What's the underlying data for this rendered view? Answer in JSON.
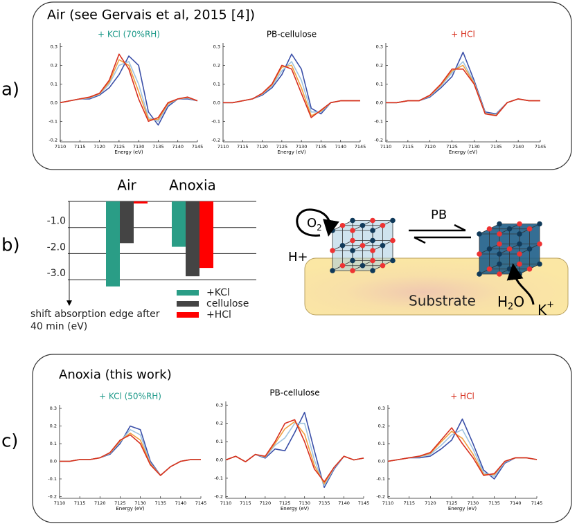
{
  "panel_labels": [
    "a)",
    "b)",
    "c)"
  ],
  "panel_titles": [
    "Air (see Gervais et al, 2015 [4])",
    "Anoxia (this work)"
  ],
  "diagram": {
    "pb": "PB",
    "o2": {
      "base": "O",
      "sub": "2"
    },
    "h_plus": "H+",
    "substrate": "Substrate",
    "h2o": {
      "base": "H",
      "sub": "2",
      "rest": "O"
    },
    "k_plus": {
      "base": "K",
      "sup": "+"
    }
  },
  "chart_data": [
    {
      "type": "line",
      "title": "+ KCl (70%RH)",
      "title_color": "#1f9a8a",
      "xlabel": "Energy (eV)",
      "x": [
        7110,
        7112.5,
        7115,
        7117.5,
        7120,
        7122.5,
        7125,
        7127.5,
        7130,
        7132.5,
        7135,
        7137.5,
        7140,
        7142.5,
        7145
      ],
      "xlim": [
        7110,
        7145
      ],
      "xticks": [
        7110,
        7115,
        7120,
        7125,
        7130,
        7135,
        7140,
        7145
      ],
      "ylim": [
        -0.21,
        0.32
      ],
      "yticks": [
        -0.2,
        -0.1,
        {
          "value": 0,
          "label": "0.0"
        },
        0.1,
        0.2,
        0.3
      ],
      "series": [
        {
          "color": "#3a4fa8",
          "values": [
            0,
            0.01,
            0.02,
            0.02,
            0.04,
            0.08,
            0.15,
            0.25,
            0.2,
            -0.05,
            -0.12,
            -0.02,
            0.02,
            0.02,
            0.01
          ]
        },
        {
          "color": "#9ec3e0",
          "values": [
            0,
            0.01,
            0.02,
            0.025,
            0.045,
            0.1,
            0.2,
            0.22,
            0.1,
            -0.08,
            -0.1,
            -0.01,
            0.02,
            0.025,
            0.01
          ]
        },
        {
          "color": "#f0a040",
          "values": [
            0,
            0.01,
            0.02,
            0.028,
            0.048,
            0.11,
            0.23,
            0.2,
            0.06,
            -0.09,
            -0.09,
            -0.005,
            0.02,
            0.028,
            0.01
          ]
        },
        {
          "color": "#d7301f",
          "values": [
            0,
            0.01,
            0.02,
            0.03,
            0.05,
            0.12,
            0.26,
            0.18,
            0.02,
            -0.1,
            -0.08,
            0,
            0.02,
            0.03,
            0.01
          ]
        }
      ]
    },
    {
      "type": "line",
      "title": "PB-cellulose",
      "title_color": "#000000",
      "xlabel": "Energy (eV)",
      "x": [
        7110,
        7112.5,
        7115,
        7117.5,
        7120,
        7122.5,
        7125,
        7127.5,
        7130,
        7132.5,
        7135,
        7137.5,
        7140,
        7142.5,
        7145
      ],
      "xlim": [
        7110,
        7145
      ],
      "xticks": [
        7110,
        7115,
        7120,
        7125,
        7130,
        7135,
        7140,
        7145
      ],
      "ylim": [
        -0.21,
        0.32
      ],
      "yticks": [
        -0.2,
        -0.1,
        {
          "value": 0,
          "label": "0.0"
        },
        0.1,
        0.2,
        0.3
      ],
      "series": [
        {
          "color": "#3a4fa8",
          "values": [
            0,
            0,
            0.01,
            0.02,
            0.04,
            0.08,
            0.15,
            0.26,
            0.18,
            -0.03,
            -0.06,
            0,
            0.01,
            0.01,
            0.01
          ]
        },
        {
          "color": "#9ec3e0",
          "values": [
            0,
            0,
            0.01,
            0.02,
            0.045,
            0.09,
            0.17,
            0.22,
            0.12,
            -0.05,
            -0.05,
            0,
            0.01,
            0.01,
            0.01
          ]
        },
        {
          "color": "#f0a040",
          "values": [
            0,
            0,
            0.01,
            0.02,
            0.048,
            0.095,
            0.19,
            0.2,
            0.08,
            -0.07,
            -0.045,
            0,
            0.01,
            0.01,
            0.01
          ]
        },
        {
          "color": "#d7301f",
          "values": [
            0,
            0,
            0.01,
            0.02,
            0.05,
            0.1,
            0.2,
            0.18,
            0.05,
            -0.08,
            -0.04,
            0,
            0.01,
            0.01,
            0.01
          ]
        }
      ]
    },
    {
      "type": "line",
      "title": "+ HCl",
      "title_color": "#d7301f",
      "xlabel": "Energy (eV)",
      "x": [
        7110,
        7112.5,
        7115,
        7117.5,
        7120,
        7122.5,
        7125,
        7127.5,
        7130,
        7132.5,
        7135,
        7137.5,
        7140,
        7142.5,
        7145
      ],
      "xlim": [
        7110,
        7145
      ],
      "xticks": [
        7110,
        7115,
        7120,
        7125,
        7130,
        7135,
        7140,
        7145
      ],
      "ylim": [
        -0.21,
        0.32
      ],
      "yticks": [
        -0.2,
        -0.1,
        {
          "value": 0,
          "label": "0.0"
        },
        0.1,
        0.2,
        0.3
      ],
      "series": [
        {
          "color": "#3a4fa8",
          "values": [
            0,
            0,
            0.01,
            0.01,
            0.03,
            0.08,
            0.14,
            0.27,
            0.12,
            -0.05,
            -0.06,
            0,
            0.02,
            0.01,
            0.01
          ]
        },
        {
          "color": "#9ec3e0",
          "values": [
            0,
            0,
            0.01,
            0.01,
            0.035,
            0.09,
            0.16,
            0.22,
            0.11,
            -0.055,
            -0.065,
            0,
            0.02,
            0.01,
            0.01
          ]
        },
        {
          "color": "#f0a040",
          "values": [
            0,
            0,
            0.01,
            0.01,
            0.038,
            0.095,
            0.17,
            0.2,
            0.105,
            -0.058,
            -0.068,
            0,
            0.02,
            0.01,
            0.01
          ]
        },
        {
          "color": "#d7301f",
          "values": [
            0,
            0,
            0.01,
            0.01,
            0.04,
            0.1,
            0.18,
            0.18,
            0.1,
            -0.06,
            -0.07,
            0,
            0.02,
            0.01,
            0.01
          ]
        }
      ]
    },
    {
      "type": "bar",
      "categories": [
        "Air",
        "Anoxia"
      ],
      "ylabel": "shift absorption edge after 40 min (eV)",
      "ylim": [
        -3.9,
        0
      ],
      "yticks": [
        {
          "value": -1,
          "label": "-1.0"
        },
        {
          "value": -2,
          "label": "-2.0"
        },
        {
          "value": -3,
          "label": "-3.0"
        }
      ],
      "series": [
        {
          "name": "+KCl",
          "color": "#2a9d86",
          "values": [
            -3.26,
            -1.74
          ]
        },
        {
          "name": "cellulose",
          "color": "#444444",
          "values": [
            -1.6,
            -2.87
          ]
        },
        {
          "name": "+HCl",
          "color": "#ff0000",
          "values": [
            -0.08,
            -2.55
          ]
        }
      ]
    },
    {
      "type": "line",
      "title": "+ KCl (50%RH)",
      "title_color": "#1f9a8a",
      "xlabel": "Energy (eV)",
      "x": [
        7110,
        7112.5,
        7115,
        7117.5,
        7120,
        7122.5,
        7125,
        7127.5,
        7130,
        7132.5,
        7135,
        7137.5,
        7140,
        7142.5,
        7145
      ],
      "xlim": [
        7110,
        7145
      ],
      "xticks": [
        7110,
        7115,
        7120,
        7125,
        7130,
        7135,
        7140,
        7145
      ],
      "ylim": [
        -0.21,
        0.32
      ],
      "yticks": [
        -0.2,
        -0.1,
        {
          "value": 0,
          "label": "0.0"
        },
        0.1,
        0.2,
        0.3
      ],
      "series": [
        {
          "color": "#3a4fa8",
          "values": [
            0,
            0,
            0.01,
            0.01,
            0.02,
            0.04,
            0.1,
            0.2,
            0.18,
            0,
            -0.08,
            -0.03,
            0,
            0.01,
            0.01
          ]
        },
        {
          "color": "#9ec3e0",
          "values": [
            0,
            0,
            0.01,
            0.01,
            0.02,
            0.045,
            0.11,
            0.18,
            0.15,
            -0.01,
            -0.08,
            -0.03,
            0,
            0.01,
            0.01
          ]
        },
        {
          "color": "#f0a040",
          "values": [
            0,
            0,
            0.01,
            0.01,
            0.02,
            0.048,
            0.115,
            0.16,
            0.12,
            -0.015,
            -0.08,
            -0.03,
            0,
            0.01,
            0.01
          ]
        },
        {
          "color": "#d7301f",
          "values": [
            0,
            0,
            0.01,
            0.01,
            0.02,
            0.05,
            0.12,
            0.15,
            0.1,
            -0.02,
            -0.08,
            -0.03,
            0,
            0.01,
            0.01
          ]
        }
      ]
    },
    {
      "type": "line",
      "title": "PB-cellulose",
      "title_color": "#000000",
      "xlabel": "Energy (eV)",
      "x": [
        7110,
        7112.5,
        7115,
        7117.5,
        7120,
        7122.5,
        7125,
        7127.5,
        7130,
        7132.5,
        7135,
        7137.5,
        7140,
        7142.5,
        7145
      ],
      "xlim": [
        7110,
        7145
      ],
      "xticks": [
        7110,
        7115,
        7120,
        7125,
        7130,
        7135,
        7140,
        7145
      ],
      "ylim": [
        -0.21,
        0.32
      ],
      "yticks": [
        -0.2,
        -0.1,
        {
          "value": 0,
          "label": "0.0"
        },
        0.1,
        0.2,
        0.3
      ],
      "series": [
        {
          "color": "#3a4fa8",
          "values": [
            0,
            0.02,
            -0.01,
            0.03,
            0.01,
            0.06,
            0.05,
            0.15,
            0.26,
            0.05,
            -0.15,
            -0.05,
            0.02,
            0,
            0.01
          ]
        },
        {
          "color": "#9ec3e0",
          "values": [
            0,
            0.02,
            -0.01,
            0.03,
            0.015,
            0.08,
            0.12,
            0.2,
            0.2,
            0,
            -0.14,
            -0.045,
            0.02,
            0,
            0.01
          ]
        },
        {
          "color": "#f0a040",
          "values": [
            0,
            0.02,
            -0.01,
            0.03,
            0.018,
            0.09,
            0.17,
            0.21,
            0.14,
            -0.03,
            -0.13,
            -0.04,
            0.02,
            0,
            0.01
          ]
        },
        {
          "color": "#d7301f",
          "values": [
            0,
            0.02,
            -0.01,
            0.03,
            0.02,
            0.1,
            0.2,
            0.22,
            0.1,
            -0.05,
            -0.12,
            -0.04,
            0.02,
            0,
            0.01
          ]
        }
      ]
    },
    {
      "type": "line",
      "title": "+ HCl",
      "title_color": "#d7301f",
      "xlabel": "Energy (eV)",
      "x": [
        7110,
        7112.5,
        7115,
        7117.5,
        7120,
        7122.5,
        7125,
        7127.5,
        7130,
        7132.5,
        7135,
        7137.5,
        7140,
        7142.5,
        7145
      ],
      "xlim": [
        7110,
        7145
      ],
      "xticks": [
        7110,
        7115,
        7120,
        7125,
        7130,
        7135,
        7140,
        7145
      ],
      "ylim": [
        -0.21,
        0.32
      ],
      "yticks": [
        -0.2,
        -0.1,
        {
          "value": 0,
          "label": "0.0"
        },
        0.1,
        0.2,
        0.3
      ],
      "series": [
        {
          "color": "#3a4fa8",
          "values": [
            0,
            0.01,
            0.02,
            0.02,
            0.03,
            0.07,
            0.12,
            0.24,
            0.1,
            -0.05,
            -0.1,
            -0.01,
            0.02,
            0.02,
            0.01
          ]
        },
        {
          "color": "#9ec3e0",
          "values": [
            0,
            0.01,
            0.02,
            0.025,
            0.04,
            0.09,
            0.15,
            0.18,
            0.07,
            -0.065,
            -0.085,
            -0.005,
            0.02,
            0.02,
            0.01
          ]
        },
        {
          "color": "#f0a040",
          "values": [
            0,
            0.01,
            0.02,
            0.028,
            0.045,
            0.11,
            0.17,
            0.13,
            0.04,
            -0.075,
            -0.075,
            0,
            0.02,
            0.02,
            0.01
          ]
        },
        {
          "color": "#d7301f",
          "values": [
            0,
            0.01,
            0.02,
            0.03,
            0.05,
            0.12,
            0.19,
            0.1,
            0.02,
            -0.08,
            -0.07,
            0,
            0.02,
            0.02,
            0.01
          ]
        }
      ]
    }
  ]
}
